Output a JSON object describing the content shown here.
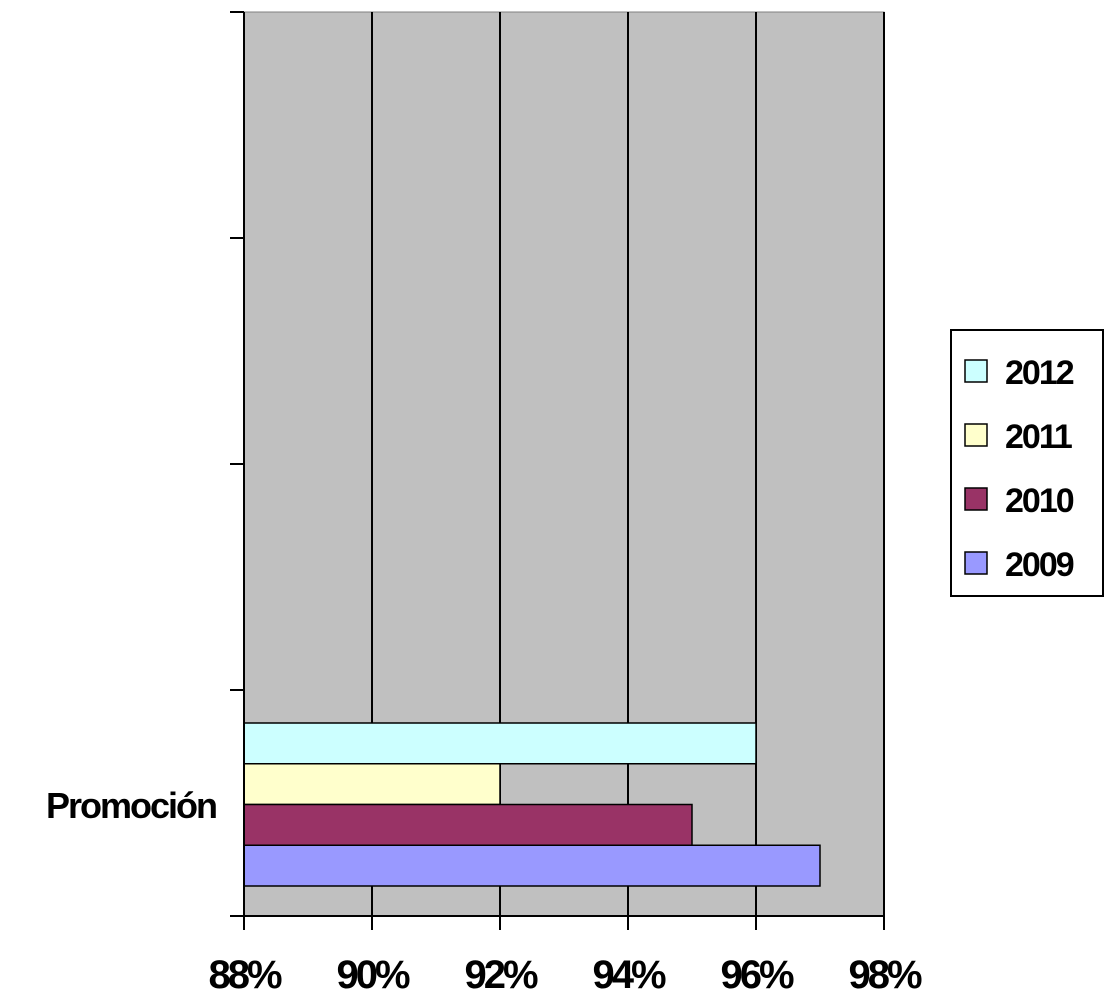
{
  "chart_data": {
    "type": "bar",
    "orientation": "horizontal",
    "categories": [
      "Promoción"
    ],
    "series": [
      {
        "name": "2012",
        "values": [
          96
        ],
        "color": "#CCFFFF"
      },
      {
        "name": "2011",
        "values": [
          92
        ],
        "color": "#FFFFCC"
      },
      {
        "name": "2010",
        "values": [
          95
        ],
        "color": "#993366"
      },
      {
        "name": "2009",
        "values": [
          97
        ],
        "color": "#9999FF"
      }
    ],
    "unit": "%",
    "xlim": [
      88,
      98
    ],
    "x_ticks": [
      88,
      90,
      92,
      94,
      96,
      98
    ],
    "x_tick_labels": [
      "88%",
      "90%",
      "92%",
      "94%",
      "96%",
      "98%"
    ],
    "title": "",
    "xlabel": "",
    "ylabel": "",
    "grid": true,
    "plot_background": "#C0C0C0",
    "legend_position": "right"
  }
}
